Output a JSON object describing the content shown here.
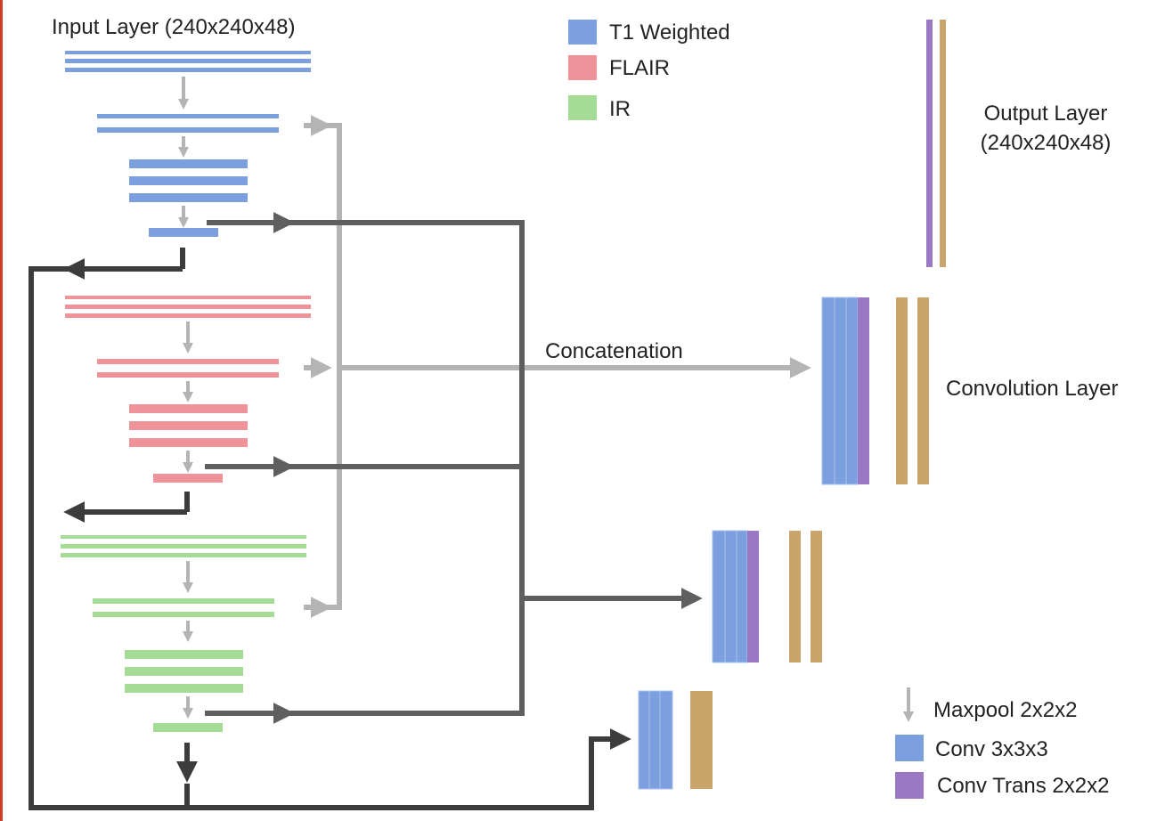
{
  "labels": {
    "input_layer": "Input Layer (240x240x48)",
    "output_layer_line1": "Output Layer",
    "output_layer_line2": "(240x240x48)",
    "concatenation": "Concatenation",
    "convolution_layer": "Convolution Layer"
  },
  "modality_legend": [
    {
      "label": "T1 Weighted",
      "color": "#7b9fdf"
    },
    {
      "label": "FLAIR",
      "color": "#ee939a"
    },
    {
      "label": "IR",
      "color": "#a4dc96"
    }
  ],
  "operation_legend": {
    "maxpool": "Maxpool 2x2x2",
    "conv": "Conv 3x3x3",
    "conv_trans": "Conv Trans 2x2x2"
  },
  "colors": {
    "t1": "#7b9fdf",
    "flair": "#ee939a",
    "ir": "#a4dc96",
    "conv": "#7b9fdf",
    "conv_trans": "#9a78c4",
    "output": "#c9a56c",
    "skip_arrow": "#b4b4b4",
    "main_arrow": "#5f5f5f",
    "feedback_arrow": "#3c3c3c",
    "maxpool_arrow": "#b4b4b4",
    "frame": "#d23a2a"
  }
}
